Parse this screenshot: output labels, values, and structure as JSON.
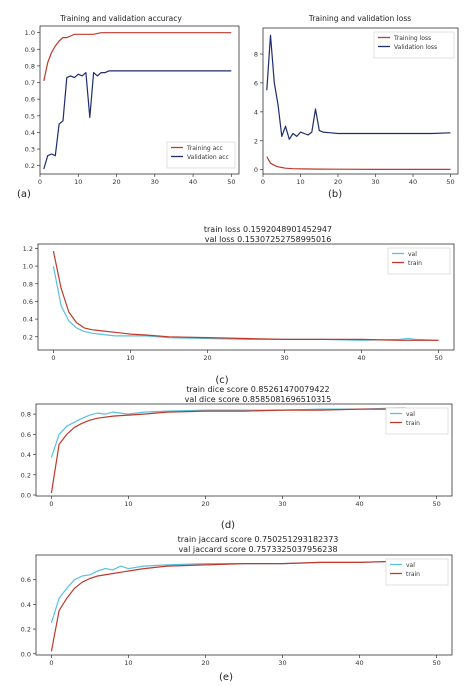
{
  "panels": [
    {
      "id": "a",
      "type": "line",
      "title": "Training and validation accuracy",
      "subtitle": [],
      "caption": "(a)",
      "xlim": [
        0,
        52
      ],
      "ylim": [
        0.15,
        1.04
      ],
      "xticks": [
        0,
        10,
        20,
        30,
        40,
        50
      ],
      "yticks": [
        0.2,
        0.3,
        0.4,
        0.5,
        0.6,
        0.7,
        0.8,
        0.9,
        1.0
      ],
      "ytick_labels": [
        "0.2",
        "0.3",
        "0.4",
        "0.5",
        "0.6",
        "0.7",
        "0.8",
        "0.9",
        "1.0"
      ],
      "legend_position": "bottom-right",
      "series": [
        {
          "name": "Training acc",
          "color": "#c0392b",
          "x": [
            1,
            2,
            3,
            4,
            5,
            6,
            7,
            8,
            9,
            10,
            12,
            14,
            16,
            18,
            20,
            25,
            30,
            35,
            40,
            45,
            50
          ],
          "y": [
            0.71,
            0.82,
            0.88,
            0.92,
            0.95,
            0.97,
            0.97,
            0.98,
            0.99,
            0.99,
            0.99,
            0.99,
            1.0,
            1.0,
            1.0,
            1.0,
            1.0,
            1.0,
            1.0,
            1.0,
            1.0
          ]
        },
        {
          "name": "Validation acc",
          "color": "#1f2d6e",
          "x": [
            1,
            2,
            3,
            4,
            5,
            6,
            7,
            8,
            9,
            10,
            11,
            12,
            13,
            14,
            15,
            16,
            17,
            18,
            20,
            25,
            30,
            35,
            40,
            45,
            50
          ],
          "y": [
            0.18,
            0.26,
            0.27,
            0.26,
            0.45,
            0.47,
            0.73,
            0.74,
            0.73,
            0.75,
            0.74,
            0.76,
            0.49,
            0.76,
            0.74,
            0.76,
            0.76,
            0.77,
            0.77,
            0.77,
            0.77,
            0.77,
            0.77,
            0.77,
            0.77
          ]
        }
      ]
    },
    {
      "id": "b",
      "type": "line",
      "title": "Training and validation loss",
      "subtitle": [],
      "caption": "(b)",
      "xlim": [
        0,
        52
      ],
      "ylim": [
        -0.3,
        9.8
      ],
      "xticks": [
        0,
        10,
        20,
        30,
        40,
        50
      ],
      "yticks": [
        0,
        2,
        4,
        6,
        8
      ],
      "ytick_labels": [
        "0",
        "2",
        "4",
        "6",
        "8"
      ],
      "legend_position": "top-right",
      "series": [
        {
          "name": "Training loss",
          "color": "#c0392b",
          "x": [
            1,
            2,
            3,
            4,
            5,
            6,
            8,
            10,
            15,
            20,
            30,
            40,
            50
          ],
          "y": [
            0.9,
            0.45,
            0.3,
            0.2,
            0.15,
            0.1,
            0.07,
            0.05,
            0.04,
            0.03,
            0.02,
            0.02,
            0.02
          ]
        },
        {
          "name": "Validation loss",
          "color": "#1f2d6e",
          "x": [
            1,
            2,
            3,
            4,
            5,
            6,
            7,
            8,
            9,
            10,
            12,
            13,
            14,
            15,
            16,
            18,
            20,
            25,
            30,
            35,
            40,
            45,
            50
          ],
          "y": [
            5.5,
            9.3,
            6.0,
            4.5,
            2.3,
            3.0,
            2.1,
            2.5,
            2.3,
            2.6,
            2.4,
            2.6,
            4.2,
            2.7,
            2.6,
            2.55,
            2.5,
            2.5,
            2.5,
            2.5,
            2.5,
            2.5,
            2.55
          ]
        }
      ]
    },
    {
      "id": "c",
      "type": "line",
      "title": "",
      "subtitle": [
        "train loss 0.1592048901452947",
        "val loss 0.15307252758995016"
      ],
      "caption": "(c)",
      "xlim": [
        -2,
        52
      ],
      "ylim": [
        0.05,
        1.25
      ],
      "xticks": [
        0,
        10,
        20,
        30,
        40,
        50
      ],
      "yticks": [
        0.2,
        0.4,
        0.6,
        0.8,
        1.0,
        1.2
      ],
      "ytick_labels": [
        "0.2",
        "0.4",
        "0.6",
        "0.8",
        "1.0",
        "1.2"
      ],
      "legend_position": "top-right",
      "series": [
        {
          "name": "val",
          "color": "#5bc0de",
          "x": [
            0,
            1,
            2,
            3,
            4,
            5,
            6,
            8,
            10,
            12,
            15,
            20,
            25,
            30,
            35,
            40,
            45,
            46,
            47,
            50
          ],
          "y": [
            1.0,
            0.55,
            0.38,
            0.3,
            0.26,
            0.24,
            0.23,
            0.21,
            0.21,
            0.21,
            0.19,
            0.18,
            0.17,
            0.17,
            0.17,
            0.16,
            0.17,
            0.18,
            0.17,
            0.16
          ]
        },
        {
          "name": "train",
          "color": "#c0392b",
          "x": [
            0,
            1,
            2,
            3,
            4,
            5,
            6,
            8,
            10,
            12,
            15,
            20,
            25,
            30,
            35,
            40,
            45,
            50
          ],
          "y": [
            1.17,
            0.75,
            0.48,
            0.36,
            0.3,
            0.28,
            0.27,
            0.25,
            0.23,
            0.22,
            0.2,
            0.19,
            0.18,
            0.17,
            0.17,
            0.17,
            0.16,
            0.16
          ]
        }
      ]
    },
    {
      "id": "d",
      "type": "line",
      "title": "",
      "subtitle": [
        "train dice score 0.85261470079422",
        "val dice score 0.8585081696510315"
      ],
      "caption": "(d)",
      "xlim": [
        -2,
        52
      ],
      "ylim": [
        -0.01,
        0.9
      ],
      "xticks": [
        0,
        10,
        20,
        30,
        40,
        50
      ],
      "yticks": [
        0.0,
        0.2,
        0.4,
        0.6,
        0.8
      ],
      "ytick_labels": [
        "0.0",
        "0.2",
        "0.4",
        "0.6",
        "0.8"
      ],
      "legend_position": "top-right",
      "series": [
        {
          "name": "val",
          "color": "#5bc0de",
          "x": [
            0,
            1,
            2,
            3,
            4,
            5,
            6,
            7,
            8,
            9,
            10,
            12,
            15,
            20,
            25,
            30,
            35,
            40,
            45,
            46
          ],
          "y": [
            0.37,
            0.6,
            0.68,
            0.72,
            0.76,
            0.79,
            0.81,
            0.8,
            0.82,
            0.81,
            0.8,
            0.82,
            0.83,
            0.84,
            0.84,
            0.84,
            0.85,
            0.85,
            0.86,
            0.86
          ]
        },
        {
          "name": "train",
          "color": "#c0392b",
          "x": [
            0,
            1,
            2,
            3,
            4,
            5,
            6,
            8,
            10,
            12,
            15,
            20,
            25,
            30,
            35,
            40,
            45,
            46
          ],
          "y": [
            0.02,
            0.5,
            0.6,
            0.67,
            0.71,
            0.74,
            0.76,
            0.78,
            0.79,
            0.8,
            0.82,
            0.83,
            0.83,
            0.84,
            0.84,
            0.85,
            0.85,
            0.85
          ]
        }
      ]
    },
    {
      "id": "e",
      "type": "line",
      "title": "",
      "subtitle": [
        "train jaccard score 0.750251293182373",
        "val jaccard score 0.757332503795623​8"
      ],
      "caption": "(e)",
      "xlim": [
        -2,
        52
      ],
      "ylim": [
        -0.01,
        0.8
      ],
      "xticks": [
        0,
        10,
        20,
        30,
        40,
        50
      ],
      "yticks": [
        0.0,
        0.2,
        0.4,
        0.6
      ],
      "ytick_labels": [
        "0.0",
        "0.2",
        "0.4",
        "0.6"
      ],
      "legend_position": "top-right",
      "series": [
        {
          "name": "val",
          "color": "#5bc0de",
          "x": [
            0,
            1,
            2,
            3,
            4,
            5,
            6,
            7,
            8,
            9,
            10,
            11,
            12,
            15,
            20,
            25,
            30,
            35,
            40,
            45,
            46
          ],
          "y": [
            0.25,
            0.45,
            0.53,
            0.6,
            0.63,
            0.64,
            0.67,
            0.69,
            0.68,
            0.71,
            0.69,
            0.7,
            0.71,
            0.72,
            0.73,
            0.73,
            0.73,
            0.74,
            0.74,
            0.75,
            0.76
          ]
        },
        {
          "name": "train",
          "color": "#c0392b",
          "x": [
            0,
            1,
            2,
            3,
            4,
            5,
            6,
            8,
            10,
            12,
            15,
            20,
            25,
            30,
            35,
            40,
            45,
            46
          ],
          "y": [
            0.02,
            0.35,
            0.45,
            0.53,
            0.58,
            0.61,
            0.63,
            0.65,
            0.67,
            0.69,
            0.71,
            0.72,
            0.73,
            0.73,
            0.74,
            0.74,
            0.75,
            0.75
          ]
        }
      ]
    }
  ]
}
